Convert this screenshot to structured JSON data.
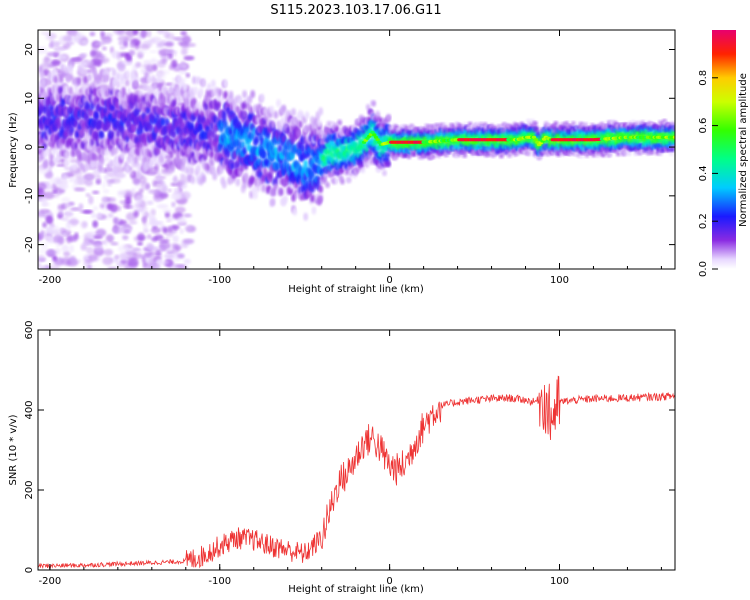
{
  "title": "S115.2023.103.17.06.G11",
  "chart_data": [
    {
      "type": "heatmap",
      "xlabel": "Height of straight line (km)",
      "ylabel": "Frequency (Hz)",
      "xlim": [
        -207,
        168
      ],
      "ylim": [
        -25,
        24
      ],
      "xticks": [
        -200,
        -100,
        0,
        100
      ],
      "yticks": [
        -20,
        -10,
        0,
        10,
        20
      ],
      "colorbar": {
        "label": "Normalized spectral amplitude",
        "range": [
          0,
          1
        ],
        "ticks": [
          "0.0",
          "0.2",
          "0.4",
          "0.6",
          "0.8"
        ],
        "tick_values": [
          0.0,
          0.2,
          0.4,
          0.6,
          0.8
        ]
      },
      "ridge": {
        "x": [
          -207,
          -180,
          -160,
          -140,
          -120,
          -100,
          -85,
          -70,
          -60,
          -50,
          -45,
          -35,
          -25,
          -15,
          -10,
          -5,
          0,
          20,
          40,
          60,
          75,
          80,
          85,
          88,
          92,
          95,
          100,
          120,
          140,
          168
        ],
        "freq_hz": [
          6,
          6,
          5.5,
          4.5,
          3.5,
          3,
          1,
          -1,
          -2,
          -4,
          -4,
          -1,
          -1,
          1,
          3,
          0.5,
          1,
          1,
          1.5,
          1.5,
          1.5,
          2,
          2,
          0.5,
          2,
          1.5,
          1.5,
          1.5,
          2,
          2
        ]
      }
    },
    {
      "type": "line",
      "xlabel": "Height of straight line (km)",
      "ylabel": "SNR (10 * v/v)",
      "xlim": [
        -207,
        168
      ],
      "ylim": [
        0,
        600
      ],
      "xticks": [
        -200,
        -100,
        0,
        100
      ],
      "yticks": [
        0,
        200,
        400,
        600
      ],
      "color": "#ee3333",
      "series": [
        {
          "x": [
            -207,
            -180,
            -160,
            -140,
            -120,
            -110,
            -100,
            -90,
            -80,
            -70,
            -60,
            -55,
            -50,
            -45,
            -40,
            -35,
            -30,
            -25,
            -20,
            -15,
            -10,
            -5,
            0,
            5,
            10,
            15,
            20,
            25,
            30,
            40,
            50,
            60,
            70,
            80,
            85,
            90,
            95,
            100,
            110,
            120,
            140,
            168
          ],
          "values": [
            10,
            12,
            15,
            18,
            22,
            35,
            60,
            80,
            75,
            60,
            50,
            45,
            40,
            60,
            80,
            150,
            220,
            240,
            280,
            320,
            330,
            300,
            260,
            250,
            270,
            320,
            360,
            390,
            410,
            420,
            425,
            428,
            430,
            425,
            420,
            430,
            380,
            420,
            425,
            428,
            430,
            435
          ]
        }
      ]
    }
  ]
}
